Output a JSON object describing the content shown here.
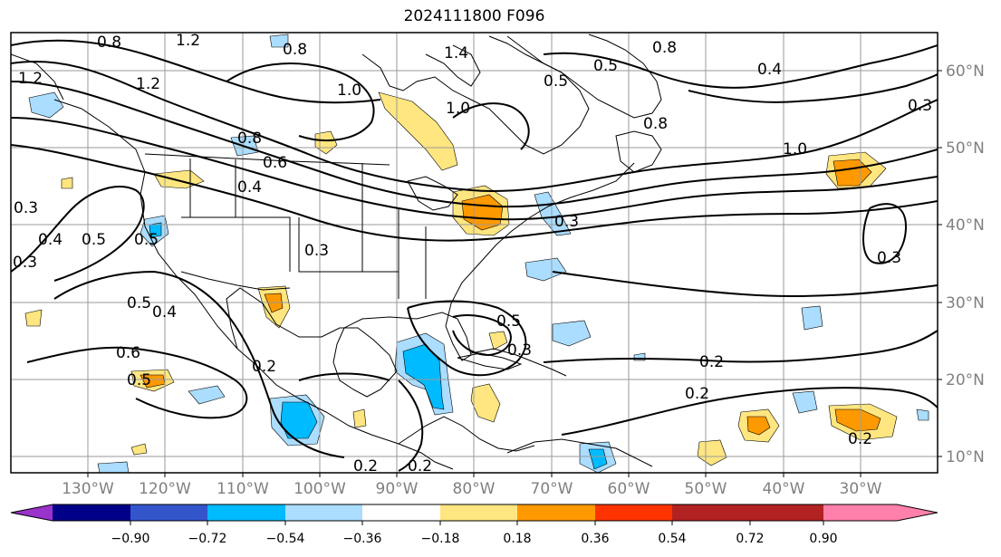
{
  "title": "2024111800 F096",
  "longitude_labels": [
    "130°W",
    "120°W",
    "110°W",
    "100°W",
    "90°W",
    "80°W",
    "70°W",
    "60°W",
    "50°W",
    "40°W",
    "30°W"
  ],
  "latitude_labels": [
    "60°N",
    "50°N",
    "40°N",
    "30°N",
    "20°N",
    "10°N"
  ],
  "colorbar": {
    "colors": [
      "#9933cc",
      "#000088",
      "#3355cc",
      "#00bbff",
      "#aaddff",
      "#ffffff",
      "#ffe680",
      "#ff9900",
      "#ff3300",
      "#b22222",
      "#ff80aa"
    ],
    "tick_labels": [
      "−0.90",
      "−0.72",
      "−0.54",
      "−0.36",
      "−0.18",
      "0.18",
      "0.36",
      "0.54",
      "0.72",
      "0.90"
    ]
  },
  "contour_labels": [
    "0.8",
    "1.2",
    "0.8",
    "1.2",
    "1.2",
    "0.8",
    "1.0",
    "1.0",
    "0.8",
    "0.6",
    "0.4",
    "0.3",
    "0.4",
    "0.5",
    "0.3",
    "0.5",
    "0.4",
    "0.5",
    "0.3",
    "0.2",
    "0.3",
    "0.5",
    "0.3",
    "0.2",
    "0.2",
    "1.0",
    "0.4",
    "0.3",
    "0.8",
    "0.5",
    "0.3",
    "0.2",
    "0.2",
    "0.2",
    "0.6",
    "0.5",
    "1.4",
    "0.5"
  ]
}
